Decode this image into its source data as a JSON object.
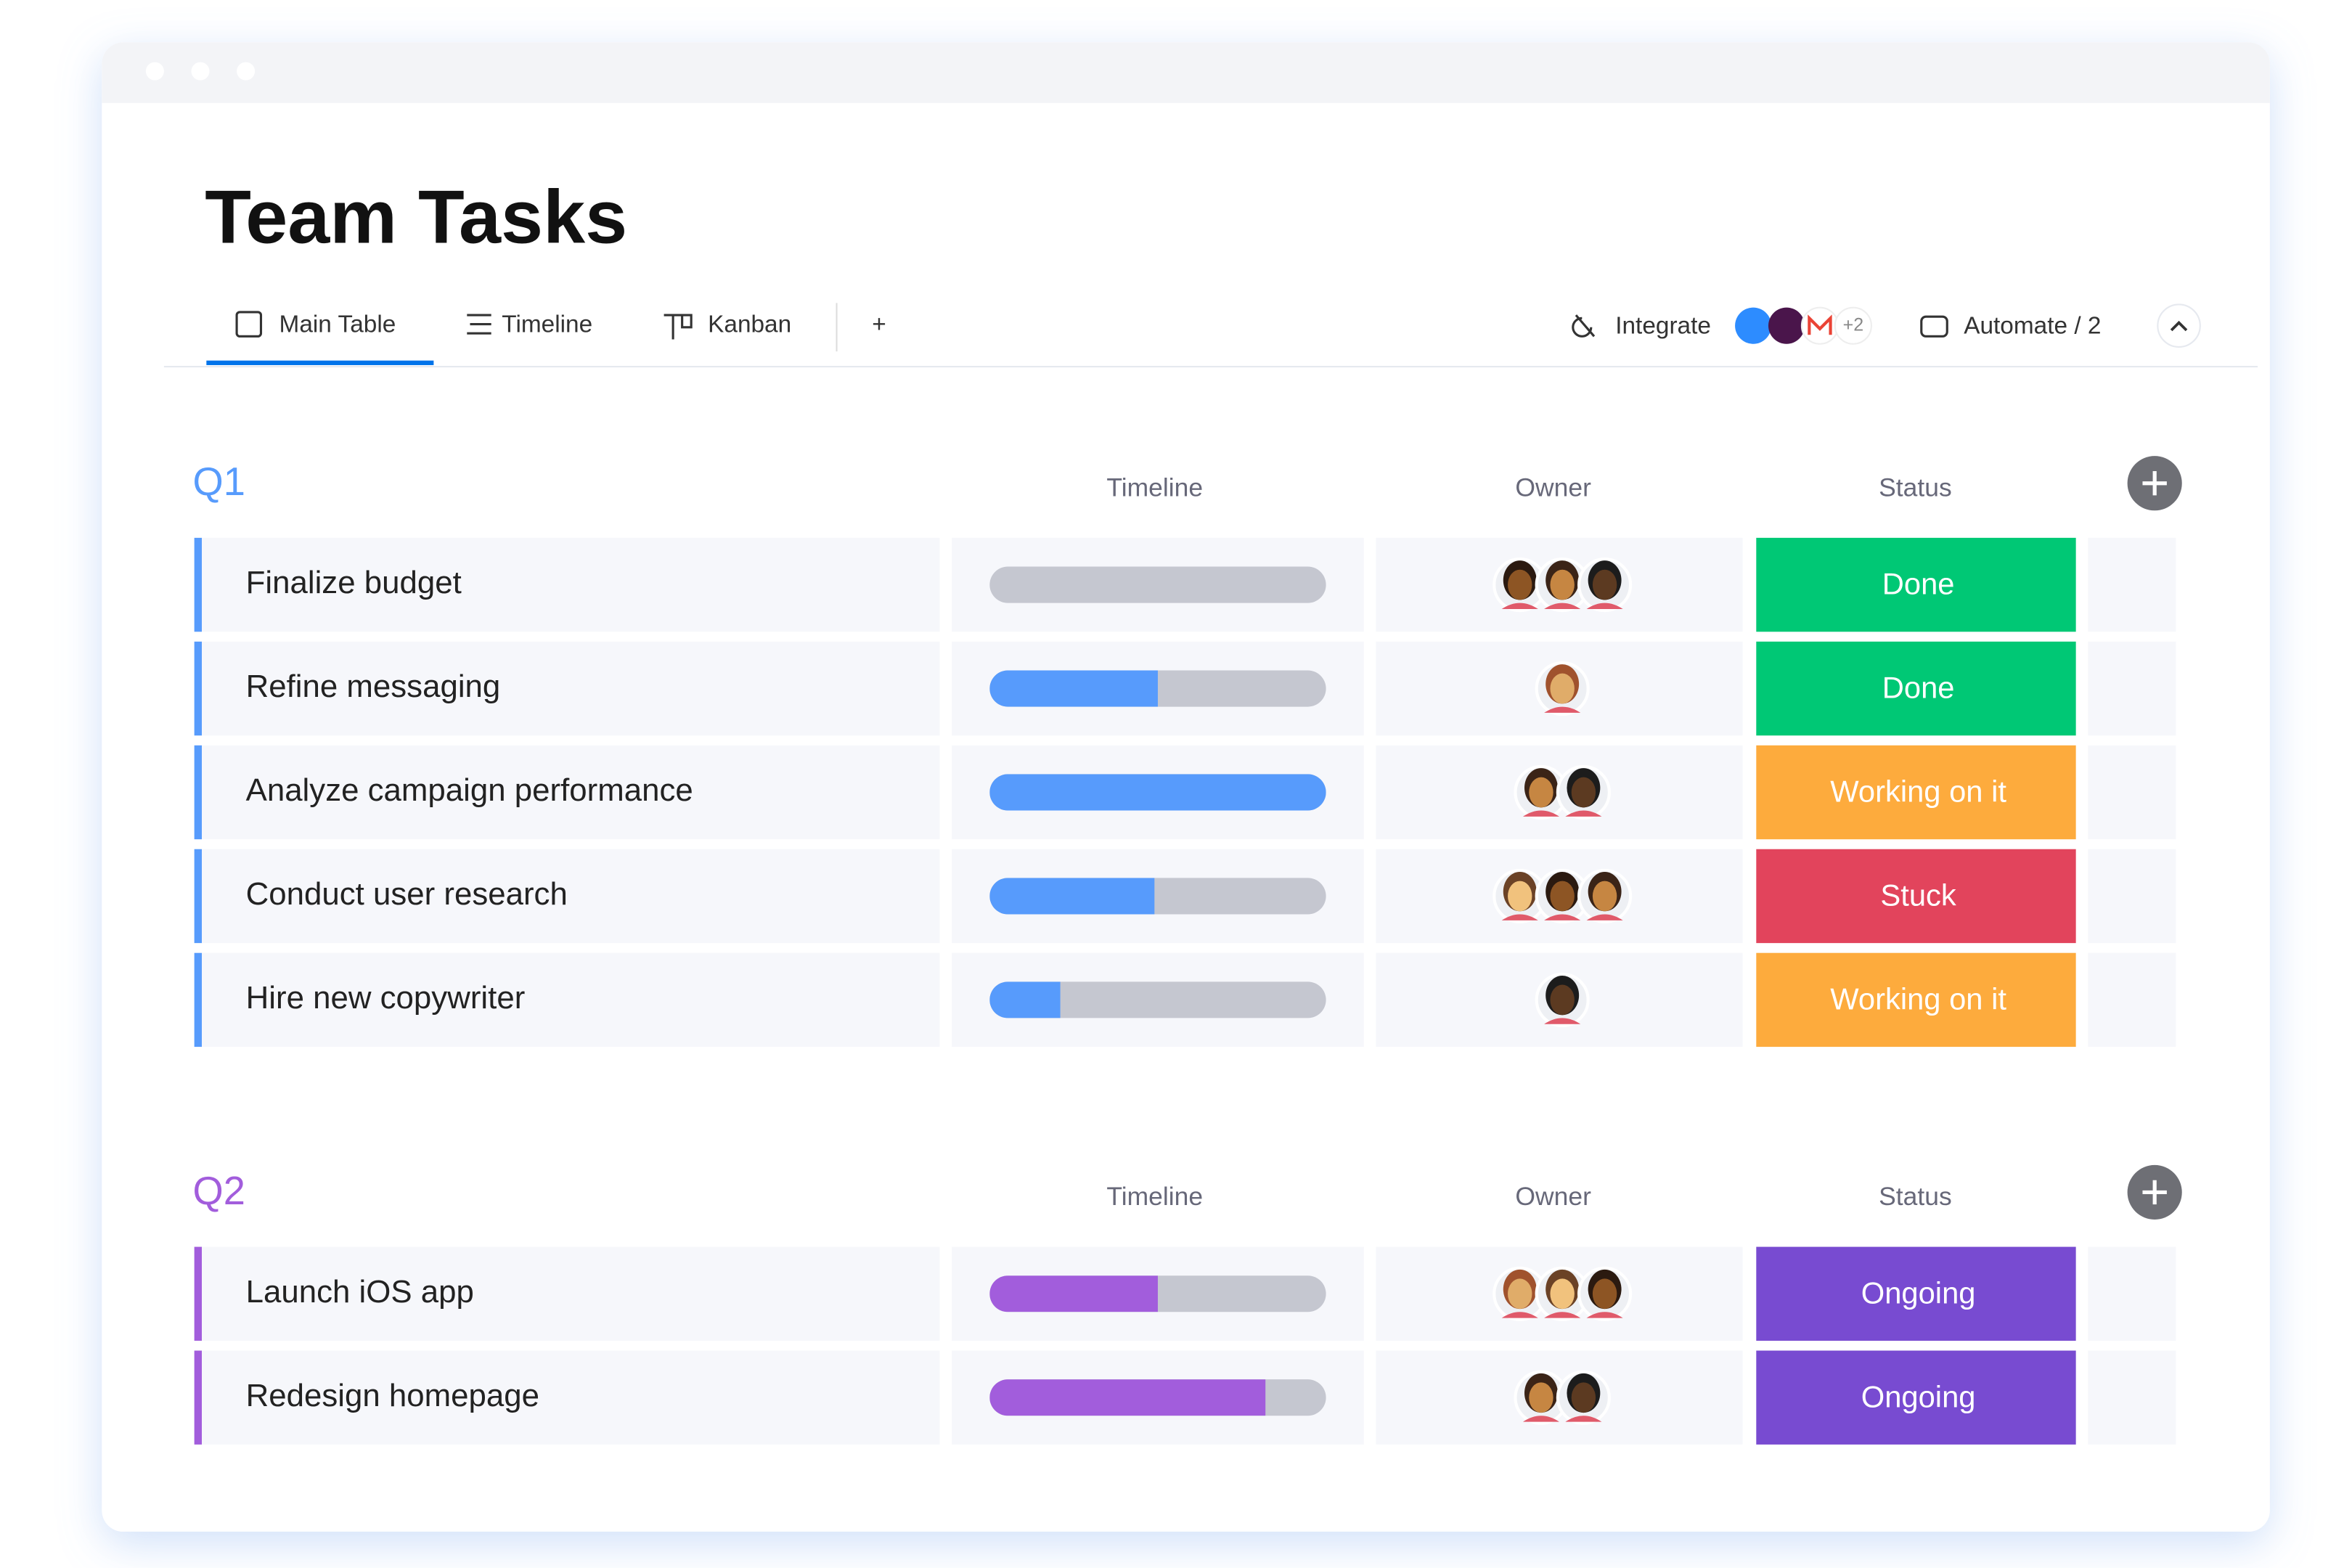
{
  "header": {
    "title": "Team Tasks"
  },
  "tabs": [
    "Main Table",
    "Timeline",
    "Kanban",
    "+"
  ],
  "toolbar": {
    "integrate": "Integrate",
    "integrations_more": "+2",
    "automate": "Automate / 2"
  },
  "groups": [
    {
      "name": "Q1",
      "color": "#579bfc",
      "columns": [
        "Timeline",
        "Owner",
        "Status"
      ],
      "rows": [
        {
          "task": "Finalize budget",
          "progress": 0,
          "owners": 3,
          "status": "Done",
          "status_color": "#00c875"
        },
        {
          "task": "Refine messaging",
          "progress": 50,
          "owners": 1,
          "status": "Done",
          "status_color": "#00c875"
        },
        {
          "task": "Analyze campaign performance",
          "progress": 100,
          "owners": 2,
          "status": "Working on it",
          "status_color": "#fdab3d"
        },
        {
          "task": "Conduct user research",
          "progress": 49,
          "owners": 3,
          "status": "Stuck",
          "status_color": "#e2445c"
        },
        {
          "task": "Hire new copywriter",
          "progress": 21,
          "owners": 1,
          "status": "Working on it",
          "status_color": "#fdab3d"
        }
      ]
    },
    {
      "name": "Q2",
      "color": "#a25ddc",
      "columns": [
        "Timeline",
        "Owner",
        "Status"
      ],
      "rows": [
        {
          "task": "Launch iOS app",
          "progress": 50,
          "owners": 3,
          "status": "Ongoing",
          "status_color": "#784bd1"
        },
        {
          "task": "Redesign homepage",
          "progress": 82,
          "owners": 2,
          "status": "Ongoing",
          "status_color": "#784bd1"
        }
      ]
    }
  ]
}
